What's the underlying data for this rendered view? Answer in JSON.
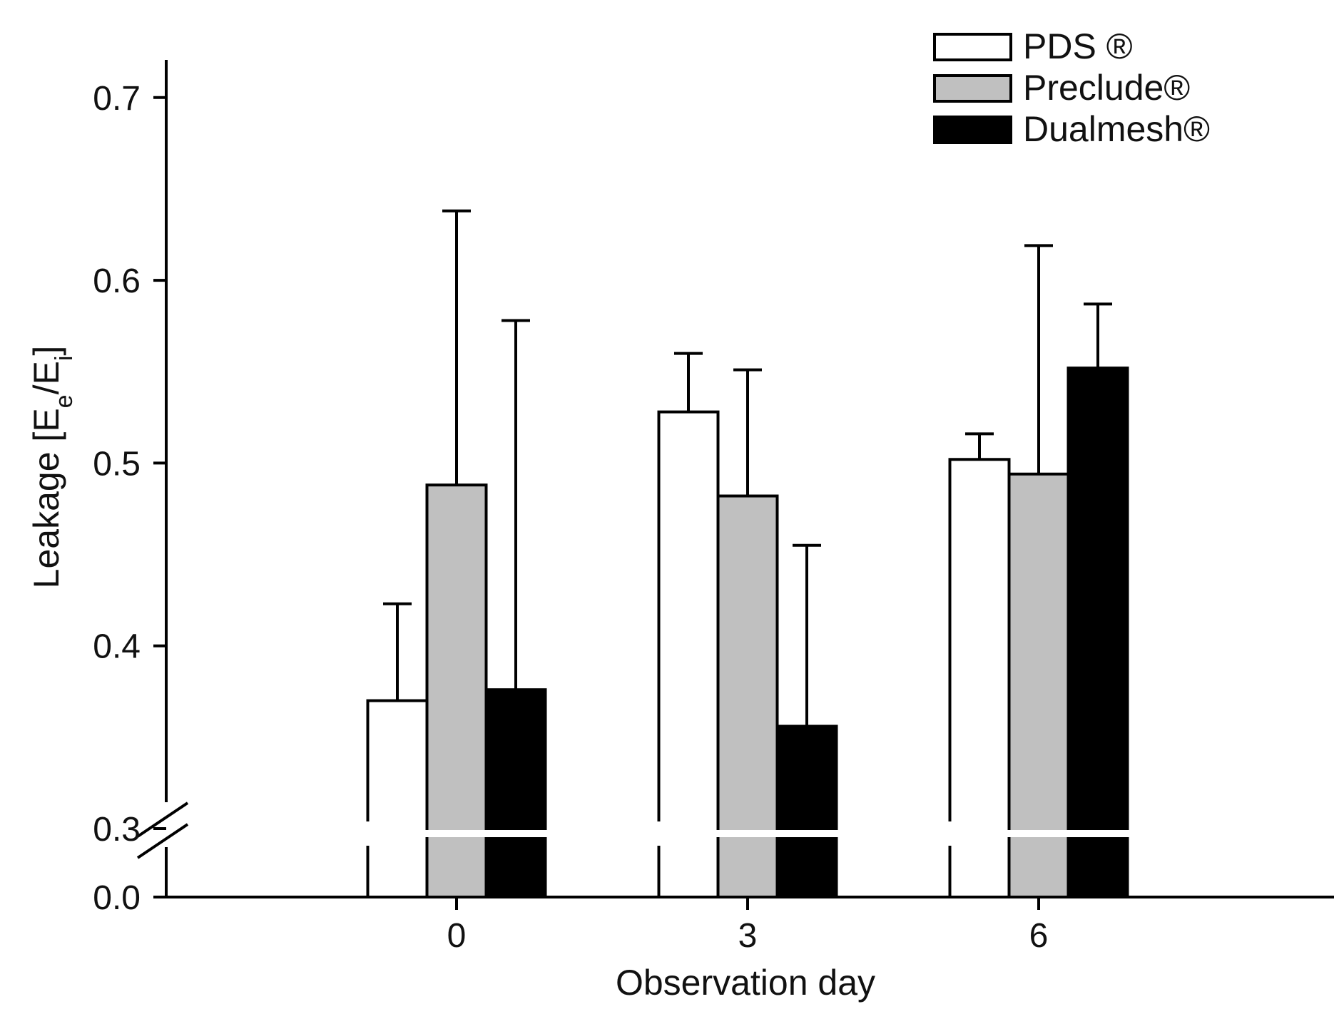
{
  "chart_data": {
    "type": "bar",
    "xlabel": "Observation day",
    "ylabel": "Leakage [Ee/Ei]",
    "categories": [
      "0",
      "3",
      "6"
    ],
    "y_ticks": [
      {
        "value": 0.0,
        "label": "0.0"
      },
      {
        "value": 0.3,
        "label": "0.3"
      },
      {
        "value": 0.4,
        "label": "0.4"
      },
      {
        "value": 0.5,
        "label": "0.5"
      },
      {
        "value": 0.6,
        "label": "0.6"
      },
      {
        "value": 0.7,
        "label": "0.7"
      }
    ],
    "axis_break": {
      "from": 0.0,
      "to": 0.3
    },
    "ylim": [
      0.0,
      0.72
    ],
    "legend_position": "top-right",
    "series": [
      {
        "name": "PDS ®",
        "color": "#ffffff",
        "values": [
          0.37,
          0.528,
          0.502
        ],
        "errors": [
          0.053,
          0.032,
          0.014
        ]
      },
      {
        "name": "Preclude®",
        "color": "#c0c0c0",
        "values": [
          0.488,
          0.482,
          0.494
        ],
        "errors": [
          0.15,
          0.069,
          0.125
        ]
      },
      {
        "name": "Dualmesh®",
        "color": "#000000",
        "values": [
          0.376,
          0.356,
          0.552
        ],
        "errors": [
          0.202,
          0.099,
          0.035
        ]
      }
    ]
  }
}
